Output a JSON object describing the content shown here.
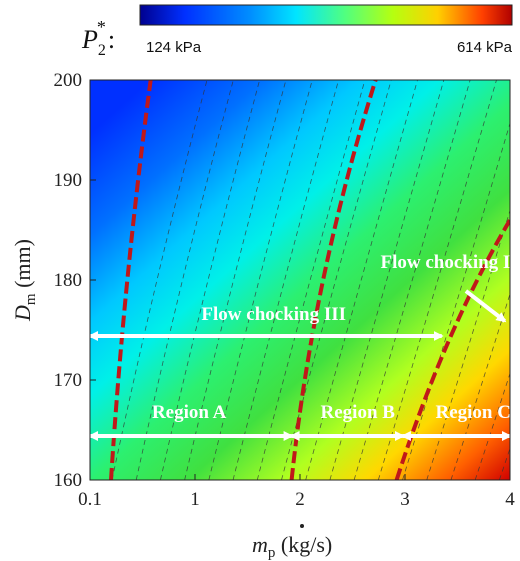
{
  "chart_data": {
    "type": "heatmap",
    "title": "",
    "xlabel": "ṁp (kg/s)",
    "xlabel_main": "m",
    "xlabel_sub": "p",
    "xlabel_unit": " (kg/s)",
    "ylabel": "Dm (mm)",
    "ylabel_main": "D",
    "ylabel_sub": "m",
    "ylabel_unit": " (mm)",
    "xlim": [
      0.1,
      4
    ],
    "ylim": [
      160,
      200
    ],
    "x_ticks": [
      {
        "value": 0.1,
        "label": "0.1"
      },
      {
        "value": 1,
        "label": "1"
      },
      {
        "value": 2,
        "label": "2"
      },
      {
        "value": 3,
        "label": "3"
      },
      {
        "value": 4,
        "label": "4"
      }
    ],
    "y_ticks": [
      {
        "value": 160,
        "label": "160"
      },
      {
        "value": 170,
        "label": "170"
      },
      {
        "value": 180,
        "label": "180"
      },
      {
        "value": 190,
        "label": "190"
      },
      {
        "value": 200,
        "label": "200"
      }
    ],
    "colorbar": {
      "quantity": "P",
      "quantity_sub": "2",
      "quantity_sup": "*",
      "suffix": ":",
      "min_label": "124 kPa",
      "max_label": "614 kPa",
      "min": 124,
      "max": 614,
      "unit": "kPa"
    },
    "contour_lines": {
      "count": 20,
      "style": "dashed",
      "color": "#333333"
    },
    "boundary_curves": [
      {
        "name": "",
        "points": [
          [
            0.28,
            160
          ],
          [
            0.42,
            180
          ],
          [
            0.62,
            200
          ]
        ]
      },
      {
        "name": "",
        "points": [
          [
            1.92,
            160
          ],
          [
            2.22,
            180
          ],
          [
            2.72,
            200
          ]
        ]
      },
      {
        "name": "",
        "points": [
          [
            2.92,
            160
          ],
          [
            3.42,
            174
          ],
          [
            4.0,
            186
          ]
        ]
      }
    ],
    "boundary_color": "#c0181a",
    "annotations": [
      {
        "text": "Flow chocking II",
        "x": 3.42,
        "y": 181.2
      },
      {
        "text": "Flow chocking III",
        "x": 1.75,
        "y": 176.0
      },
      {
        "text": "Region A",
        "x": 0.95,
        "y": 166.2
      },
      {
        "text": "Region B",
        "x": 2.55,
        "y": 166.2
      },
      {
        "text": "Region C",
        "x": 3.65,
        "y": 166.2
      }
    ],
    "arrows": [
      {
        "from": [
          0.1,
          174.4
        ],
        "to": [
          3.35,
          174.4
        ],
        "double": true
      },
      {
        "from": [
          0.1,
          164.4
        ],
        "to": [
          1.92,
          164.4
        ],
        "double": true
      },
      {
        "from": [
          1.92,
          164.4
        ],
        "to": [
          2.98,
          164.4
        ],
        "double": true
      },
      {
        "from": [
          2.98,
          164.4
        ],
        "to": [
          4.0,
          164.4
        ],
        "double": true
      },
      {
        "from": [
          3.58,
          178.9
        ],
        "to": [
          3.95,
          175.9
        ],
        "double": false
      }
    ]
  }
}
